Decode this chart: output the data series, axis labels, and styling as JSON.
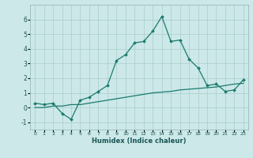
{
  "xlabel": "Humidex (Indice chaleur)",
  "ylabel": "",
  "bg_color": "#cce8e8",
  "grid_color": "#aacccc",
  "line_color": "#1a7a6e",
  "xlim": [
    -0.5,
    23.5
  ],
  "ylim": [
    -1.5,
    7.0
  ],
  "xticks": [
    0,
    1,
    2,
    3,
    4,
    5,
    6,
    7,
    8,
    9,
    10,
    11,
    12,
    13,
    14,
    15,
    16,
    17,
    18,
    19,
    20,
    21,
    22,
    23
  ],
  "yticks": [
    -1,
    0,
    1,
    2,
    3,
    4,
    5,
    6
  ],
  "series1_x": [
    0,
    1,
    2,
    3,
    4,
    5,
    6,
    7,
    8,
    9,
    10,
    11,
    12,
    13,
    14,
    15,
    16,
    17,
    18,
    19,
    20,
    21,
    22,
    23
  ],
  "series1_y": [
    0.3,
    0.2,
    0.3,
    -0.4,
    -0.8,
    0.5,
    0.7,
    1.1,
    1.5,
    3.2,
    3.6,
    4.4,
    4.5,
    5.2,
    6.2,
    4.5,
    4.6,
    3.3,
    2.7,
    1.5,
    1.6,
    1.1,
    1.2,
    1.9
  ],
  "series2_x": [
    0,
    1,
    2,
    3,
    4,
    5,
    6,
    7,
    8,
    9,
    10,
    11,
    12,
    13,
    14,
    15,
    16,
    17,
    18,
    19,
    20,
    21,
    22,
    23
  ],
  "series2_y": [
    0.0,
    0.0,
    0.1,
    0.1,
    0.2,
    0.2,
    0.3,
    0.4,
    0.5,
    0.6,
    0.7,
    0.8,
    0.9,
    1.0,
    1.05,
    1.1,
    1.2,
    1.25,
    1.3,
    1.35,
    1.4,
    1.5,
    1.6,
    1.65
  ]
}
